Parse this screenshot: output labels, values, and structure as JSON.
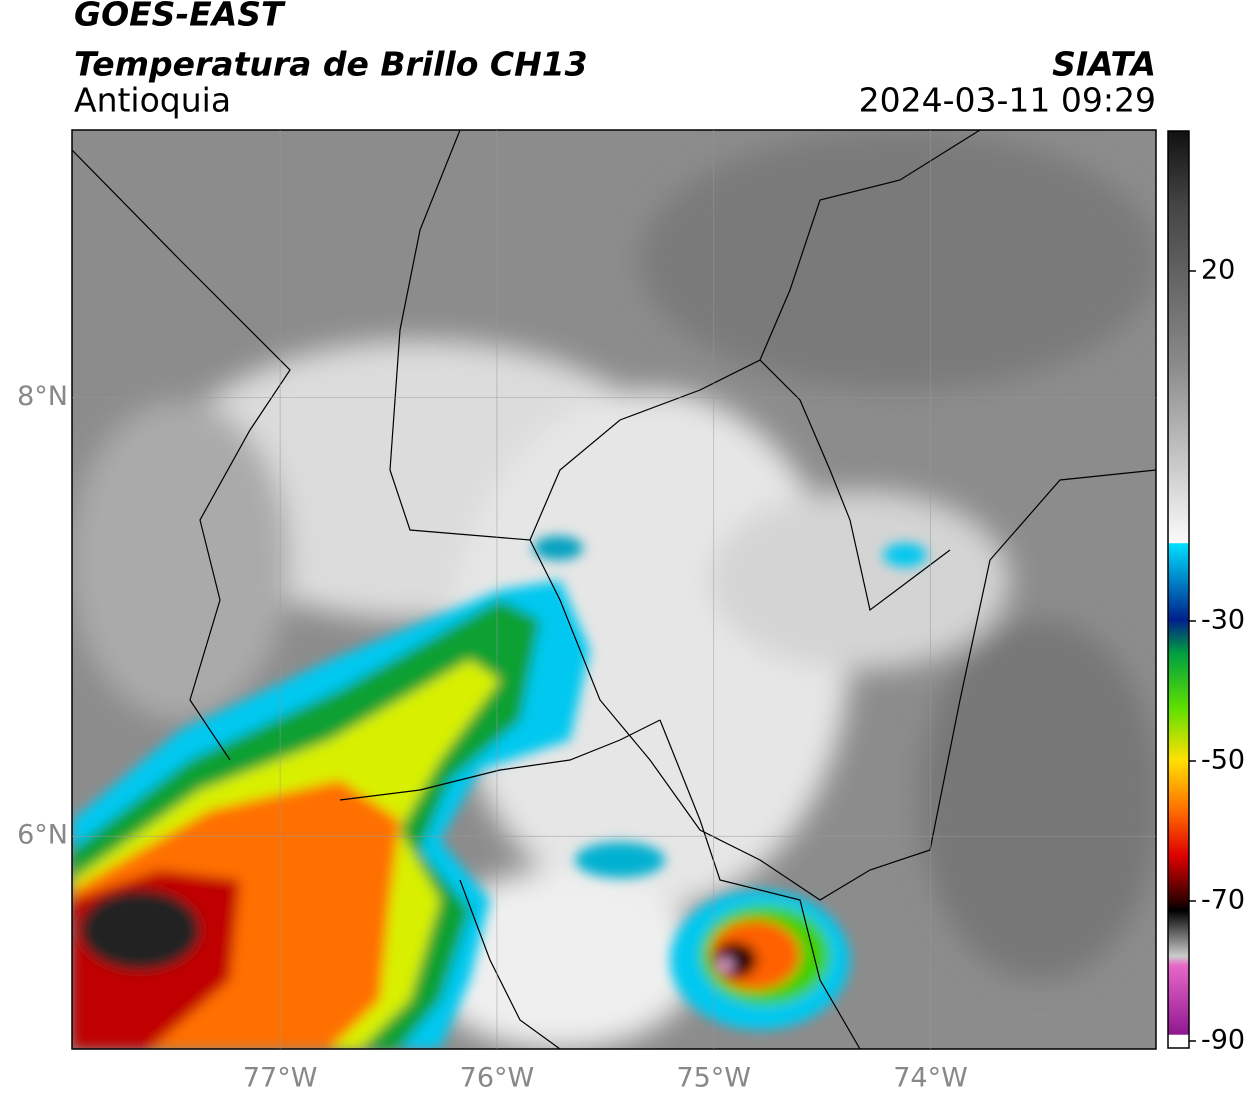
{
  "header": {
    "title": "GOES-EAST",
    "subtitle": "Temperatura de Brillo CH13",
    "region": "Antioquia",
    "source": "SIATA",
    "datetime": "2024-03-11 09:29"
  },
  "map": {
    "xlim": [
      -77.96,
      -72.96
    ],
    "ylim": [
      5.03,
      9.22
    ],
    "xticks": [
      {
        "value": -77,
        "label": "77°W"
      },
      {
        "value": -76,
        "label": "76°W"
      },
      {
        "value": -75,
        "label": "75°W"
      },
      {
        "value": -74,
        "label": "74°W"
      }
    ],
    "yticks": [
      {
        "value": 6,
        "label": "6°N"
      },
      {
        "value": 8,
        "label": "8°N"
      }
    ],
    "grid": true
  },
  "colorbar": {
    "lim": [
      -91,
      40
    ],
    "ticks": [
      20,
      -30,
      -50,
      -70,
      -90
    ]
  }
}
